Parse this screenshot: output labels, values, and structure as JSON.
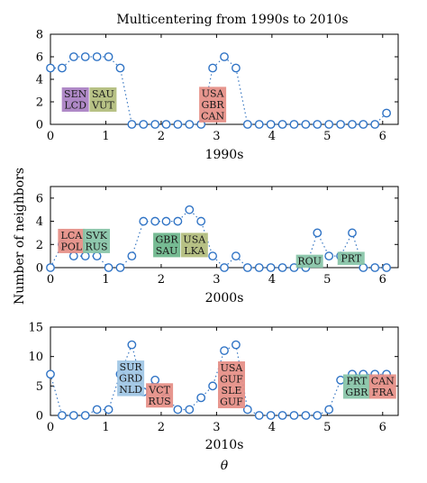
{
  "figure": {
    "title": "Multicentering from 1990s to 2010s",
    "shared_ylabel": "Number of neighbors",
    "colors": {
      "line": "#3a78c2",
      "marker": "#2f73c5",
      "green": "#6ab58a",
      "purple": "#a87fc2",
      "red": "#e58d84",
      "blue": "#9dc4e4",
      "teal": "#85c3a6",
      "olive": "#b1bc7b"
    }
  },
  "chart_data": [
    {
      "type": "line",
      "xlabel": "1990s",
      "ylabel": "",
      "xlim": [
        0,
        6.28
      ],
      "ylim": [
        0,
        8
      ],
      "xticks": [
        0,
        1,
        2,
        3,
        4,
        5,
        6
      ],
      "yticks": [
        0,
        2,
        4,
        6,
        8
      ],
      "series": [
        {
          "x": [
            0,
            0.21,
            0.42,
            0.63,
            0.84,
            1.05,
            1.26,
            1.47,
            1.68,
            1.89,
            2.09,
            2.3,
            2.51,
            2.72,
            2.93,
            3.14,
            3.35,
            3.56,
            3.77,
            3.98,
            4.19,
            4.4,
            4.61,
            4.82,
            5.03,
            5.24,
            5.45,
            5.65,
            5.86,
            6.07
          ],
          "values": [
            5,
            5,
            6,
            6,
            6,
            6,
            5,
            0,
            0,
            0,
            0,
            0,
            0,
            0,
            5,
            6,
            5,
            0,
            0,
            0,
            0,
            0,
            0,
            0,
            0,
            0,
            0,
            0,
            0,
            1
          ]
        }
      ],
      "annotations": [
        {
          "lines": [
            "SEN",
            "LCD"
          ],
          "color": "purple",
          "x": 0.45,
          "y": 2.2
        },
        {
          "lines": [
            "SAU",
            "VUT"
          ],
          "color": "olive",
          "x": 0.95,
          "y": 2.2
        },
        {
          "lines": [
            "USA",
            "GBR",
            "CAN"
          ],
          "color": "red",
          "x": 2.93,
          "y": 1.75
        }
      ]
    },
    {
      "type": "line",
      "xlabel": "2000s",
      "ylabel": "",
      "xlim": [
        0,
        6.28
      ],
      "ylim": [
        0,
        7
      ],
      "xticks": [
        0,
        1,
        2,
        3,
        4,
        5,
        6
      ],
      "yticks": [
        0,
        2,
        4,
        6
      ],
      "series": [
        {
          "x": [
            0,
            0.21,
            0.42,
            0.63,
            0.84,
            1.05,
            1.26,
            1.47,
            1.68,
            1.89,
            2.09,
            2.3,
            2.51,
            2.72,
            2.93,
            3.14,
            3.35,
            3.56,
            3.77,
            3.98,
            4.19,
            4.4,
            4.61,
            4.82,
            5.03,
            5.24,
            5.45,
            5.65,
            5.86,
            6.07
          ],
          "values": [
            0,
            2,
            1,
            1,
            1,
            0,
            0,
            1,
            4,
            4,
            4,
            4,
            5,
            4,
            1,
            0,
            1,
            0,
            0,
            0,
            0,
            0,
            0,
            3,
            1,
            1,
            3,
            0,
            0,
            0
          ]
        }
      ],
      "annotations": [
        {
          "lines": [
            "LCA",
            "POL"
          ],
          "color": "red",
          "x": 0.38,
          "y": 2.3
        },
        {
          "lines": [
            "SVK",
            "RUS"
          ],
          "color": "teal",
          "x": 0.83,
          "y": 2.3
        },
        {
          "lines": [
            "GBR",
            "SAU"
          ],
          "color": "green",
          "x": 2.1,
          "y": 1.95
        },
        {
          "lines": [
            "USA",
            "LKA"
          ],
          "color": "olive",
          "x": 2.6,
          "y": 1.95
        },
        {
          "lines": [
            "ROU"
          ],
          "color": "teal",
          "x": 4.68,
          "y": 0.55
        },
        {
          "lines": [
            "PRT"
          ],
          "color": "teal",
          "x": 5.43,
          "y": 0.8
        }
      ]
    },
    {
      "type": "line",
      "xlabel": "2010s",
      "ylabel": "",
      "xlim": [
        0,
        6.28
      ],
      "ylim": [
        0,
        15
      ],
      "xticks": [
        0,
        1,
        2,
        3,
        4,
        5,
        6
      ],
      "yticks": [
        0,
        5,
        10,
        15
      ],
      "series": [
        {
          "x": [
            0,
            0.21,
            0.42,
            0.63,
            0.84,
            1.05,
            1.26,
            1.47,
            1.68,
            1.89,
            2.09,
            2.3,
            2.51,
            2.72,
            2.93,
            3.14,
            3.35,
            3.56,
            3.77,
            3.98,
            4.19,
            4.4,
            4.61,
            4.82,
            5.03,
            5.24,
            5.45,
            5.65,
            5.86,
            6.07
          ],
          "values": [
            7,
            0,
            0,
            0,
            1,
            1,
            7,
            12,
            4,
            6,
            3,
            1,
            1,
            3,
            5,
            11,
            12,
            1,
            0,
            0,
            0,
            0,
            0,
            0,
            1,
            6,
            7,
            7,
            7,
            7
          ]
        }
      ],
      "annotations": [
        {
          "lines": [
            "SUR",
            "GRD",
            "NLD"
          ],
          "color": "blue",
          "x": 1.45,
          "y": 6.3
        },
        {
          "lines": [
            "VCT",
            "RUS"
          ],
          "color": "red",
          "x": 1.97,
          "y": 3.4
        },
        {
          "lines": [
            "USA",
            "GUF",
            "SLE",
            "GUF"
          ],
          "color": "red",
          "x": 3.27,
          "y": 5.2
        },
        {
          "lines": [
            "PRT",
            "GBR"
          ],
          "color": "teal",
          "x": 5.53,
          "y": 4.9
        },
        {
          "lines": [
            "CAN",
            "FRA"
          ],
          "color": "red",
          "x": 6.0,
          "y": 4.9
        }
      ]
    }
  ]
}
